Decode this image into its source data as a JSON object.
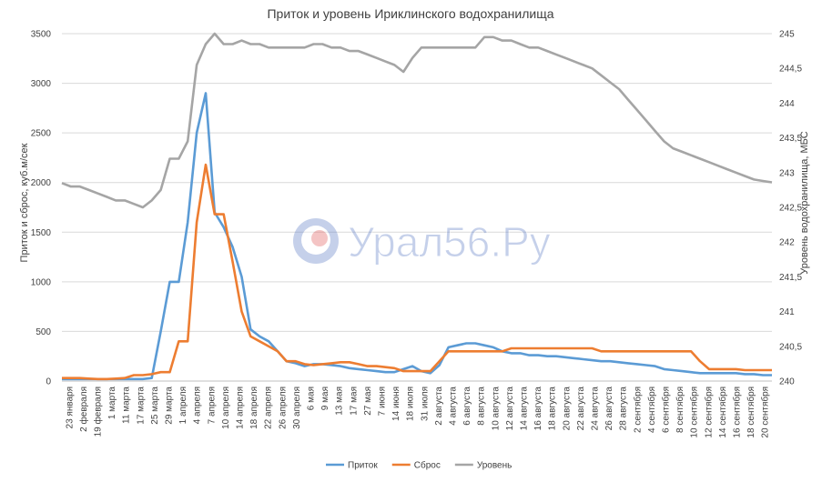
{
  "chart_data": {
    "type": "line",
    "title": "Приток и уровень Ириклинского водохранилища",
    "ylabel_left": "Приток и сброс, куб.м/сек",
    "ylabel_right": "Уровень водохранилища, МБС",
    "ylim_left": [
      0,
      3500
    ],
    "ylim_right": [
      240,
      245
    ],
    "yticks_left": [
      "0",
      "500",
      "1000",
      "1500",
      "2000",
      "2500",
      "3000",
      "3500"
    ],
    "yticks_right": [
      "240",
      "240,5",
      "241",
      "241,5",
      "242",
      "242,5",
      "243",
      "243,5",
      "244",
      "244,5",
      "245"
    ],
    "x_tick_labels": [
      "23 января",
      "2 февраля",
      "19 февраля",
      "1 марта",
      "11 марта",
      "17 марта",
      "25 марта",
      "29 марта",
      "1 апреля",
      "4 апреля",
      "7 апреля",
      "10 апреля",
      "14 апреля",
      "18 апреля",
      "22 апреля",
      "26 апреля",
      "30 апреля",
      "6 мая",
      "9 мая",
      "13 мая",
      "17 мая",
      "27 мая",
      "7 июня",
      "14 июня",
      "18 июля",
      "31 июля",
      "2 августа",
      "4 августа",
      "6 августа",
      "8 августа",
      "10 августа",
      "12 августа",
      "14 августа",
      "16 августа",
      "18 августа",
      "20 августа",
      "22 августа",
      "24 августа",
      "26 августа",
      "28 августа",
      "2 сентября",
      "4 сентября",
      "6 сентября",
      "8 сентября",
      "10 сентября",
      "12 сентября",
      "14 сентября",
      "16 сентября",
      "18 сентября",
      "20 сентября"
    ],
    "series": [
      {
        "name": "Приток",
        "color": "#5b9bd5",
        "axis": "left",
        "values": [
          20,
          20,
          20,
          20,
          20,
          20,
          20,
          20,
          20,
          20,
          30,
          500,
          1000,
          1000,
          1600,
          2500,
          2900,
          1700,
          1550,
          1350,
          1050,
          520,
          450,
          400,
          300,
          200,
          180,
          150,
          170,
          170,
          160,
          150,
          130,
          120,
          110,
          100,
          90,
          90,
          120,
          150,
          100,
          80,
          160,
          340,
          360,
          380,
          380,
          360,
          340,
          300,
          280,
          280,
          260,
          260,
          250,
          250,
          240,
          230,
          220,
          210,
          200,
          200,
          190,
          180,
          170,
          160,
          150,
          120,
          110,
          100,
          90,
          80,
          80,
          80,
          80,
          80,
          70,
          70,
          60,
          60
        ]
      },
      {
        "name": "Сброс",
        "color": "#ed7d31",
        "axis": "left",
        "values": [
          30,
          30,
          30,
          25,
          20,
          20,
          25,
          30,
          60,
          60,
          70,
          90,
          90,
          400,
          400,
          1600,
          2180,
          1680,
          1680,
          1200,
          700,
          450,
          400,
          350,
          300,
          200,
          200,
          170,
          160,
          170,
          180,
          190,
          190,
          170,
          150,
          150,
          140,
          130,
          100,
          100,
          100,
          100,
          200,
          300,
          300,
          300,
          300,
          300,
          300,
          300,
          330,
          330,
          330,
          330,
          330,
          330,
          330,
          330,
          330,
          330,
          300,
          300,
          300,
          300,
          300,
          300,
          300,
          300,
          300,
          300,
          300,
          200,
          120,
          120,
          120,
          120,
          110,
          110,
          110,
          110
        ]
      },
      {
        "name": "Уровень",
        "color": "#a5a5a5",
        "axis": "right",
        "values": [
          242.85,
          242.8,
          242.8,
          242.75,
          242.7,
          242.65,
          242.6,
          242.6,
          242.55,
          242.5,
          242.6,
          242.75,
          243.2,
          243.2,
          243.45,
          244.55,
          244.85,
          245.0,
          244.85,
          244.85,
          244.9,
          244.85,
          244.85,
          244.8,
          244.8,
          244.8,
          244.8,
          244.8,
          244.85,
          244.85,
          244.8,
          244.8,
          244.75,
          244.75,
          244.7,
          244.65,
          244.6,
          244.55,
          244.45,
          244.65,
          244.8,
          244.8,
          244.8,
          244.8,
          244.8,
          244.8,
          244.8,
          244.95,
          244.95,
          244.9,
          244.9,
          244.85,
          244.8,
          244.8,
          244.75,
          244.7,
          244.65,
          244.6,
          244.55,
          244.5,
          244.4,
          244.3,
          244.2,
          244.05,
          243.9,
          243.75,
          243.6,
          243.45,
          243.35,
          243.3,
          243.25,
          243.2,
          243.15,
          243.1,
          243.05,
          243.0,
          242.95,
          242.9,
          242.88,
          242.86
        ]
      }
    ],
    "legend_position": "bottom-center",
    "grid": true
  },
  "watermark": {
    "text": "Урал56.Ру"
  }
}
